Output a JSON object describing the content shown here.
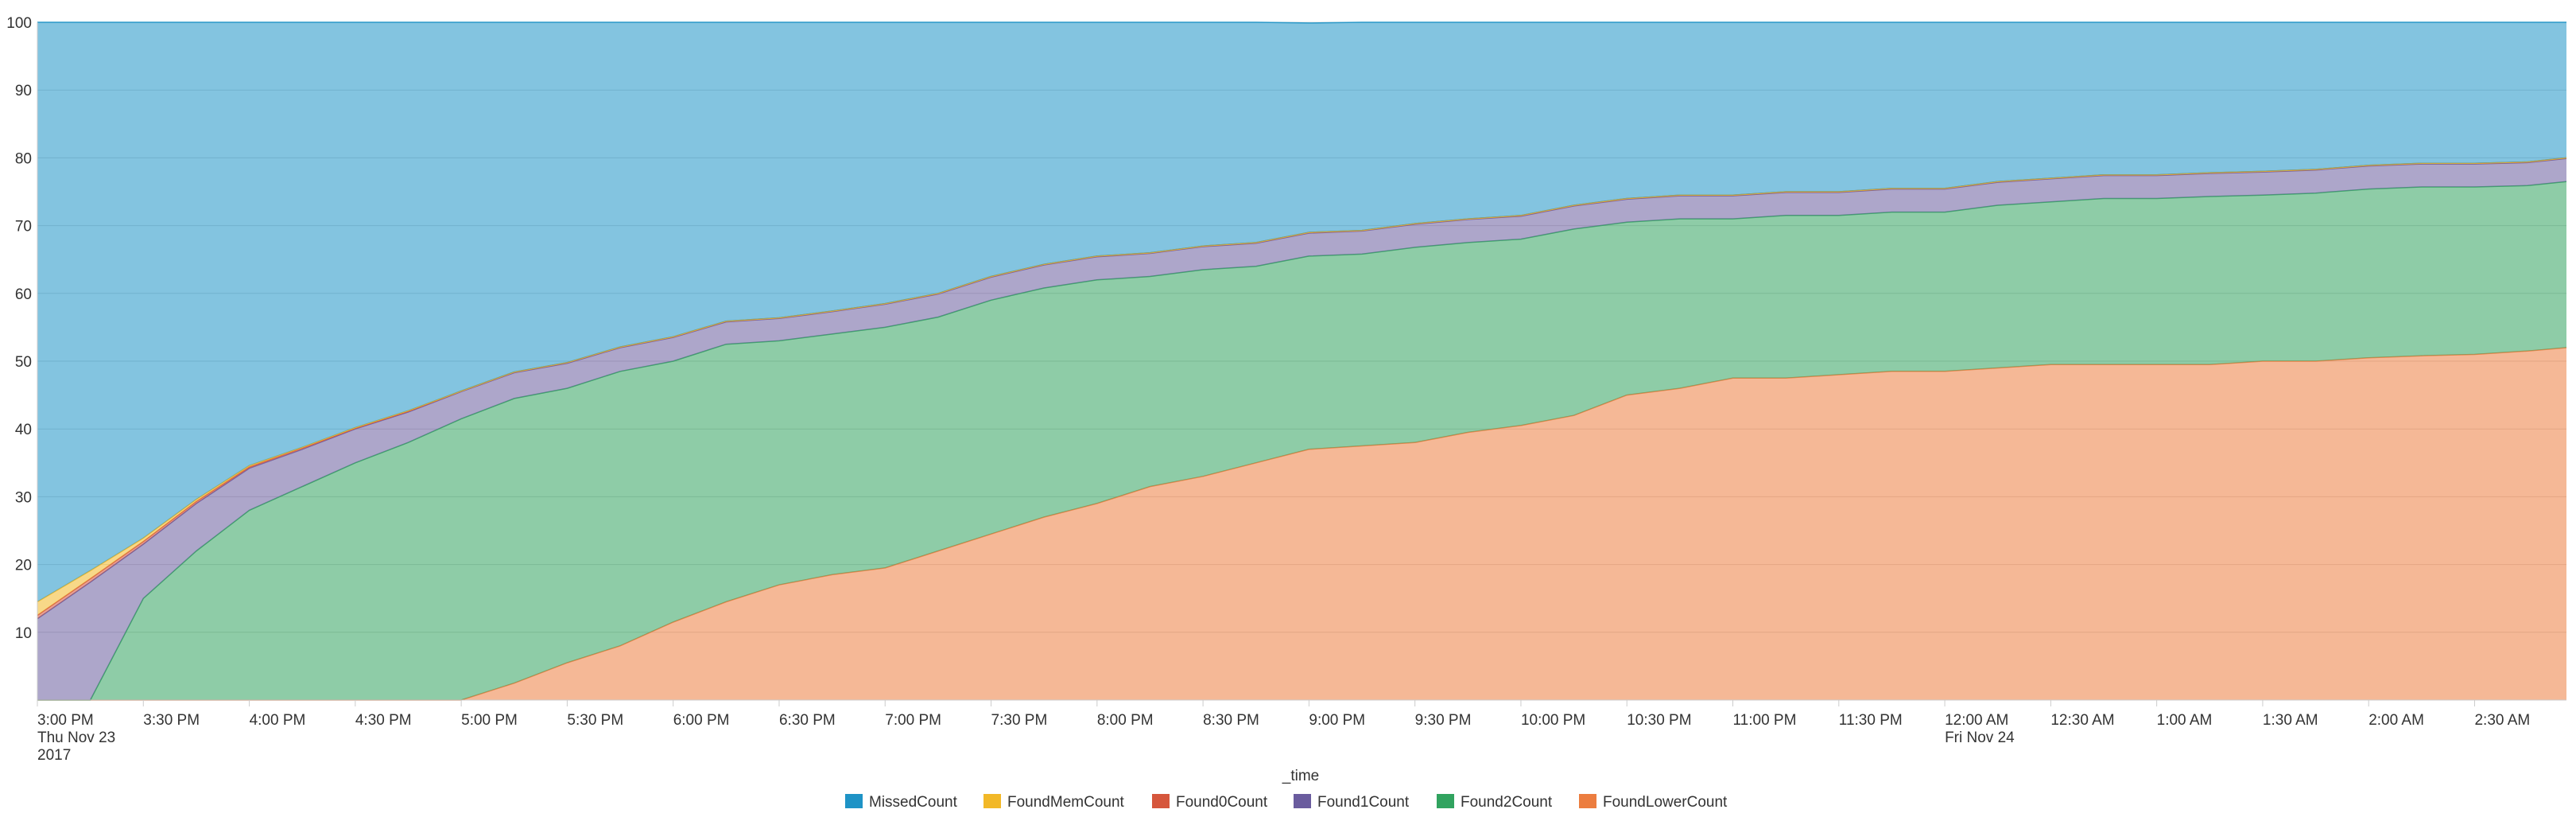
{
  "chart_data": {
    "type": "area",
    "stacked": true,
    "percent_scale": true,
    "xlabel": "_time",
    "ylabel": "",
    "ylim": [
      0,
      100
    ],
    "yticks": [
      10,
      20,
      30,
      40,
      50,
      60,
      70,
      80,
      90,
      100
    ],
    "grid": true,
    "legend_position": "bottom",
    "x_start": "2017-11-23 15:00",
    "x_end": "2017-11-24 02:56",
    "x": [
      "2017-11-23 15:00",
      "2017-11-23 15:15",
      "2017-11-23 15:30",
      "2017-11-23 15:45",
      "2017-11-23 16:00",
      "2017-11-23 16:15",
      "2017-11-23 16:30",
      "2017-11-23 16:45",
      "2017-11-23 17:00",
      "2017-11-23 17:15",
      "2017-11-23 17:30",
      "2017-11-23 17:45",
      "2017-11-23 18:00",
      "2017-11-23 18:15",
      "2017-11-23 18:30",
      "2017-11-23 18:45",
      "2017-11-23 19:00",
      "2017-11-23 19:15",
      "2017-11-23 19:30",
      "2017-11-23 19:45",
      "2017-11-23 20:00",
      "2017-11-23 20:15",
      "2017-11-23 20:30",
      "2017-11-23 20:45",
      "2017-11-23 21:00",
      "2017-11-23 21:15",
      "2017-11-23 21:30",
      "2017-11-23 21:45",
      "2017-11-23 22:00",
      "2017-11-23 22:15",
      "2017-11-23 22:30",
      "2017-11-23 22:45",
      "2017-11-23 23:00",
      "2017-11-23 23:15",
      "2017-11-23 23:30",
      "2017-11-23 23:45",
      "2017-11-24 00:00",
      "2017-11-24 00:15",
      "2017-11-24 00:30",
      "2017-11-24 00:45",
      "2017-11-24 01:00",
      "2017-11-24 01:15",
      "2017-11-24 01:30",
      "2017-11-24 01:45",
      "2017-11-24 02:00",
      "2017-11-24 02:15",
      "2017-11-24 02:30",
      "2017-11-24 02:45",
      "2017-11-24 02:56"
    ],
    "x_ticks": [
      {
        "time": "2017-11-23 15:00",
        "lines": [
          "3:00 PM",
          "Thu Nov 23",
          "2017"
        ]
      },
      {
        "time": "2017-11-23 15:30",
        "lines": [
          "3:30 PM"
        ]
      },
      {
        "time": "2017-11-23 16:00",
        "lines": [
          "4:00 PM"
        ]
      },
      {
        "time": "2017-11-23 16:30",
        "lines": [
          "4:30 PM"
        ]
      },
      {
        "time": "2017-11-23 17:00",
        "lines": [
          "5:00 PM"
        ]
      },
      {
        "time": "2017-11-23 17:30",
        "lines": [
          "5:30 PM"
        ]
      },
      {
        "time": "2017-11-23 18:00",
        "lines": [
          "6:00 PM"
        ]
      },
      {
        "time": "2017-11-23 18:30",
        "lines": [
          "6:30 PM"
        ]
      },
      {
        "time": "2017-11-23 19:00",
        "lines": [
          "7:00 PM"
        ]
      },
      {
        "time": "2017-11-23 19:30",
        "lines": [
          "7:30 PM"
        ]
      },
      {
        "time": "2017-11-23 20:00",
        "lines": [
          "8:00 PM"
        ]
      },
      {
        "time": "2017-11-23 20:30",
        "lines": [
          "8:30 PM"
        ]
      },
      {
        "time": "2017-11-23 21:00",
        "lines": [
          "9:00 PM"
        ]
      },
      {
        "time": "2017-11-23 21:30",
        "lines": [
          "9:30 PM"
        ]
      },
      {
        "time": "2017-11-23 22:00",
        "lines": [
          "10:00 PM"
        ]
      },
      {
        "time": "2017-11-23 22:30",
        "lines": [
          "10:30 PM"
        ]
      },
      {
        "time": "2017-11-23 23:00",
        "lines": [
          "11:00 PM"
        ]
      },
      {
        "time": "2017-11-23 23:30",
        "lines": [
          "11:30 PM"
        ]
      },
      {
        "time": "2017-11-24 00:00",
        "lines": [
          "12:00 AM",
          "Fri Nov 24"
        ]
      },
      {
        "time": "2017-11-24 00:30",
        "lines": [
          "12:30 AM"
        ]
      },
      {
        "time": "2017-11-24 01:00",
        "lines": [
          "1:00 AM"
        ]
      },
      {
        "time": "2017-11-24 01:30",
        "lines": [
          "1:30 AM"
        ]
      },
      {
        "time": "2017-11-24 02:00",
        "lines": [
          "2:00 AM"
        ]
      },
      {
        "time": "2017-11-24 02:30",
        "lines": [
          "2:30 AM"
        ]
      }
    ],
    "series": [
      {
        "name": "FoundLowerCount",
        "color": "#ec7d3f",
        "values": [
          0,
          0,
          0,
          0,
          0,
          0,
          0,
          0,
          0,
          2.5,
          5.5,
          8,
          11.5,
          14.5,
          17,
          18.5,
          19.5,
          22,
          24.5,
          27,
          29,
          31.5,
          33,
          35,
          37,
          37.5,
          38,
          39.5,
          40.5,
          42,
          45,
          46,
          47.5,
          47.5,
          48,
          48.5,
          48.5,
          49,
          49.5,
          49.5,
          49.5,
          49.5,
          50,
          50,
          50.5,
          50.8,
          51,
          51.5,
          52
        ]
      },
      {
        "name": "Found2Count",
        "color": "#31a35f",
        "values": [
          0,
          0,
          15,
          22,
          28,
          31.5,
          35,
          38,
          41.5,
          42,
          40.5,
          40.5,
          38.5,
          38,
          36,
          35.5,
          35.5,
          34.5,
          34.5,
          33.8,
          33,
          31,
          30.5,
          29,
          28.5,
          28.3,
          28.8,
          28,
          27.5,
          27.5,
          25.5,
          25,
          23.5,
          24,
          23.5,
          23.5,
          23.5,
          24,
          24,
          24.5,
          24.5,
          24.8,
          24.5,
          24.8,
          24.9,
          24.9,
          24.7,
          24.4,
          24.5
        ]
      },
      {
        "name": "Found1Count",
        "color": "#6a5c9e",
        "values": [
          12,
          17.4,
          8,
          7,
          6.2,
          5.5,
          5,
          4.5,
          4,
          3.8,
          3.7,
          3.5,
          3.5,
          3.3,
          3.3,
          3.3,
          3.4,
          3.4,
          3.4,
          3.4,
          3.4,
          3.4,
          3.4,
          3.4,
          3.4,
          3.4,
          3.4,
          3.4,
          3.4,
          3.4,
          3.4,
          3.4,
          3.4,
          3.4,
          3.4,
          3.4,
          3.4,
          3.4,
          3.4,
          3.4,
          3.4,
          3.4,
          3.4,
          3.4,
          3.4,
          3.4,
          3.4,
          3.4,
          3.4
        ]
      },
      {
        "name": "Found0Count",
        "color": "#d6563c",
        "values": [
          0.5,
          0.5,
          0.4,
          0.3,
          0.2,
          0.2,
          0.1,
          0.1,
          0.1,
          0.1,
          0.1,
          0.1,
          0.1,
          0.1,
          0.1,
          0.1,
          0.1,
          0.1,
          0.1,
          0.1,
          0.1,
          0.1,
          0.1,
          0.1,
          0.1,
          0.1,
          0.1,
          0.1,
          0.1,
          0.1,
          0.1,
          0.1,
          0.1,
          0.1,
          0.1,
          0.1,
          0.1,
          0.1,
          0.1,
          0.1,
          0.1,
          0.1,
          0.1,
          0.1,
          0.1,
          0.1,
          0.1,
          0.1,
          0.1
        ]
      },
      {
        "name": "FoundMemCount",
        "color": "#f2b827",
        "values": [
          2,
          1.2,
          0.5,
          0.3,
          0.2,
          0.1,
          0.1,
          0.1,
          0,
          0,
          0,
          0,
          0,
          0,
          0,
          0,
          0,
          0,
          0,
          0,
          0,
          0,
          0,
          0,
          0,
          0,
          0,
          0,
          0,
          0,
          0,
          0,
          0,
          0,
          0,
          0,
          0,
          0,
          0,
          0,
          0,
          0,
          0,
          0,
          0,
          0,
          0,
          0,
          0
        ]
      },
      {
        "name": "MissedCount",
        "color": "#1e93c6",
        "values": [
          85.5,
          80.9,
          76.1,
          70.4,
          65.4,
          62.7,
          59.8,
          57.3,
          54.4,
          51.6,
          50.2,
          47.9,
          46.4,
          44.1,
          43.6,
          42.6,
          41.5,
          40,
          37.5,
          35.7,
          34.5,
          34,
          33.1,
          32.5,
          30.9,
          30.7,
          29.7,
          29.1,
          28.5,
          27,
          26,
          25.5,
          25.5,
          25.1,
          25,
          24.5,
          24.5,
          23.5,
          23,
          22.6,
          22.5,
          22.2,
          22,
          21.7,
          21.1,
          20.8,
          20.8,
          20.6,
          20
        ]
      }
    ],
    "legend_order": [
      "MissedCount",
      "FoundMemCount",
      "Found0Count",
      "Found1Count",
      "Found2Count",
      "FoundLowerCount"
    ]
  }
}
